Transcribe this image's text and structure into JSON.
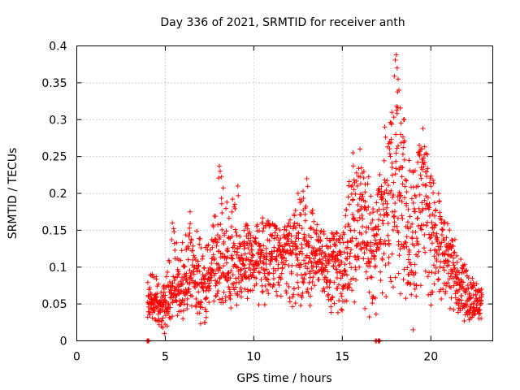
{
  "chart_data": {
    "type": "scatter",
    "title": "Day 336 of 2021, SRMTID for receiver anth",
    "xlabel": "GPS time / hours",
    "ylabel": "SRMTID / TECUs",
    "xlim": [
      0,
      23.5
    ],
    "ylim": [
      0,
      0.4
    ],
    "xticks": [
      0,
      5,
      10,
      15,
      20
    ],
    "xtick_labels": [
      "0",
      "5",
      "10",
      "15",
      "20"
    ],
    "yticks": [
      0,
      0.05,
      0.1,
      0.15,
      0.2,
      0.25,
      0.3,
      0.35,
      0.4
    ],
    "ytick_labels": [
      "0",
      "0.05",
      "0.1",
      "0.15",
      "0.2",
      "0.25",
      "0.3",
      "0.35",
      "0.4"
    ],
    "grid": true,
    "marker": "+",
    "color": "#ff0000",
    "series": [
      {
        "name": "SRMTID",
        "envelope": [
          [
            4.0,
            0.03,
            0.05,
            0.12
          ],
          [
            4.5,
            0.02,
            0.045,
            0.09
          ],
          [
            5.0,
            0.01,
            0.04,
            0.08
          ],
          [
            5.5,
            0.03,
            0.06,
            0.16
          ],
          [
            6.0,
            0.03,
            0.07,
            0.14
          ],
          [
            6.5,
            0.04,
            0.08,
            0.17
          ],
          [
            7.0,
            0.02,
            0.07,
            0.14
          ],
          [
            7.5,
            0.03,
            0.08,
            0.13
          ],
          [
            8.0,
            0.04,
            0.1,
            0.24
          ],
          [
            8.5,
            0.03,
            0.09,
            0.19
          ],
          [
            9.0,
            0.03,
            0.09,
            0.21
          ],
          [
            9.5,
            0.05,
            0.1,
            0.16
          ],
          [
            10.0,
            0.05,
            0.1,
            0.15
          ],
          [
            10.5,
            0.04,
            0.1,
            0.17
          ],
          [
            11.0,
            0.04,
            0.11,
            0.16
          ],
          [
            11.5,
            0.04,
            0.11,
            0.15
          ],
          [
            12.0,
            0.05,
            0.12,
            0.16
          ],
          [
            12.5,
            0.04,
            0.11,
            0.2
          ],
          [
            13.0,
            0.03,
            0.1,
            0.22
          ],
          [
            13.5,
            0.05,
            0.11,
            0.16
          ],
          [
            14.0,
            0.04,
            0.1,
            0.15
          ],
          [
            14.5,
            0.03,
            0.1,
            0.15
          ],
          [
            15.0,
            0.03,
            0.09,
            0.14
          ],
          [
            15.5,
            0.04,
            0.14,
            0.26
          ],
          [
            16.0,
            0.05,
            0.16,
            0.25
          ],
          [
            16.5,
            0.02,
            0.1,
            0.23
          ],
          [
            17.0,
            0.04,
            0.12,
            0.21
          ],
          [
            17.5,
            0.05,
            0.17,
            0.29
          ],
          [
            18.0,
            0.06,
            0.2,
            0.39
          ],
          [
            18.5,
            0.04,
            0.16,
            0.3
          ],
          [
            19.0,
            0.02,
            0.13,
            0.23
          ],
          [
            19.5,
            0.05,
            0.17,
            0.29
          ],
          [
            20.0,
            0.04,
            0.14,
            0.23
          ],
          [
            20.5,
            0.03,
            0.12,
            0.2
          ],
          [
            21.0,
            0.04,
            0.1,
            0.16
          ],
          [
            21.5,
            0.04,
            0.08,
            0.13
          ],
          [
            22.0,
            0.02,
            0.06,
            0.1
          ],
          [
            22.5,
            0.02,
            0.05,
            0.08
          ],
          [
            22.9,
            0.03,
            0.05,
            0.07
          ]
        ],
        "outliers": [
          [
            4.0,
            0.0
          ],
          [
            4.05,
            0.0
          ],
          [
            16.9,
            0.0
          ],
          [
            17.05,
            0.0
          ],
          [
            17.1,
            0.0
          ],
          [
            18.05,
            0.388
          ],
          [
            18.1,
            0.37
          ],
          [
            18.15,
            0.355
          ],
          [
            18.2,
            0.34
          ],
          [
            17.4,
            0.29
          ],
          [
            18.5,
            0.3
          ],
          [
            19.55,
            0.288
          ],
          [
            16.0,
            0.26
          ],
          [
            15.6,
            0.255
          ],
          [
            8.05,
            0.237
          ],
          [
            8.1,
            0.23
          ],
          [
            13.0,
            0.22
          ],
          [
            12.5,
            0.2
          ],
          [
            6.4,
            0.175
          ],
          [
            5.4,
            0.16
          ],
          [
            4.95,
            0.01
          ],
          [
            19.0,
            0.015
          ],
          [
            9.1,
            0.21
          ],
          [
            17.8,
            0.31
          ],
          [
            18.3,
            0.28
          ]
        ]
      }
    ]
  }
}
